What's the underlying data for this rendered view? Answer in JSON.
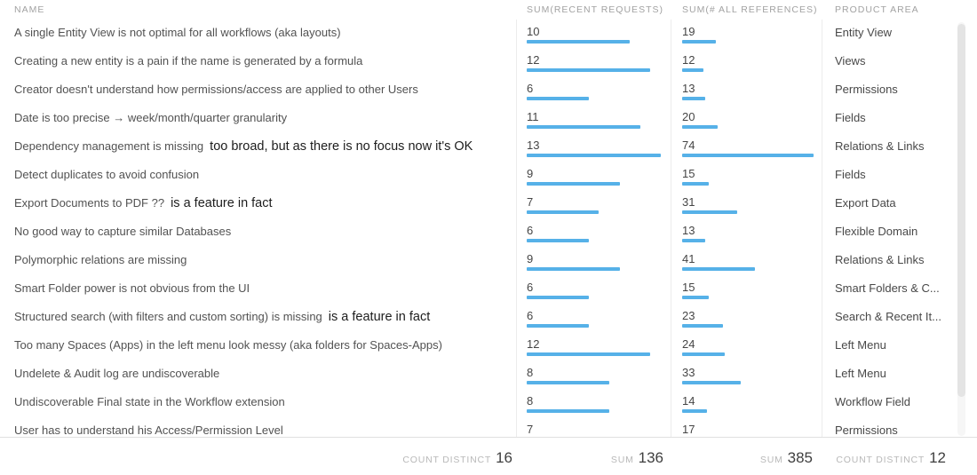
{
  "chart_data": {
    "type": "table",
    "bar_color": "#56b1e8",
    "bar_max": {
      "recent": 13,
      "refs": 74
    },
    "columns": [
      {
        "id": "name",
        "label": "NAME"
      },
      {
        "id": "recent",
        "label": "SUM(RECENT REQUESTS)"
      },
      {
        "id": "refs",
        "label": "SUM(# ALL REFERENCES)"
      },
      {
        "id": "area",
        "label": "PRODUCT AREA"
      }
    ],
    "rows": [
      {
        "name": "A single Entity View is not optimal for all workflows (aka layouts)",
        "annotation": "",
        "recent": 10,
        "refs": 19,
        "area": "Entity View"
      },
      {
        "name": "Creating a new entity is a pain if the name is generated by a formula",
        "annotation": "",
        "recent": 12,
        "refs": 12,
        "area": "Views"
      },
      {
        "name": "Creator doesn't understand how permissions/access are applied to other Users",
        "annotation": "",
        "recent": 6,
        "refs": 13,
        "area": "Permissions"
      },
      {
        "name": "Date is too precise → week/month/quarter granularity",
        "annotation": "",
        "recent": 11,
        "refs": 20,
        "area": "Fields"
      },
      {
        "name": "Dependency management is missing",
        "annotation": "too broad, but as there is no focus now it's OK",
        "recent": 13,
        "refs": 74,
        "area": "Relations & Links"
      },
      {
        "name": "Detect duplicates to avoid confusion",
        "annotation": "",
        "recent": 9,
        "refs": 15,
        "area": "Fields"
      },
      {
        "name": "Export Documents to PDF ??",
        "annotation": "is a feature in fact",
        "recent": 7,
        "refs": 31,
        "area": "Export Data"
      },
      {
        "name": "No good way to capture similar Databases",
        "annotation": "",
        "recent": 6,
        "refs": 13,
        "area": "Flexible Domain"
      },
      {
        "name": "Polymorphic relations are missing",
        "annotation": "",
        "recent": 9,
        "refs": 41,
        "area": "Relations & Links"
      },
      {
        "name": "Smart Folder power is not obvious from the UI",
        "annotation": "",
        "recent": 6,
        "refs": 15,
        "area": "Smart Folders & C..."
      },
      {
        "name": "Structured search (with filters and custom sorting) is missing",
        "annotation": "is a feature in fact",
        "recent": 6,
        "refs": 23,
        "area": "Search & Recent It..."
      },
      {
        "name": "Too many Spaces (Apps) in the left menu look messy (aka folders for Spaces-Apps)",
        "annotation": "",
        "recent": 12,
        "refs": 24,
        "area": "Left Menu"
      },
      {
        "name": "Undelete & Audit log are undiscoverable",
        "annotation": "",
        "recent": 8,
        "refs": 33,
        "area": "Left Menu"
      },
      {
        "name": "Undiscoverable Final state in the Workflow extension",
        "annotation": "",
        "recent": 8,
        "refs": 14,
        "area": "Workflow Field"
      },
      {
        "name": "User has to understand his Access/Permission Level",
        "annotation": "",
        "recent": 7,
        "refs": 17,
        "area": "Permissions"
      }
    ],
    "totals": {
      "name": {
        "label": "COUNT DISTINCT",
        "value": "16"
      },
      "recent": {
        "label": "SUM",
        "value": "136"
      },
      "refs": {
        "label": "SUM",
        "value": "385"
      },
      "area": {
        "label": "COUNT DISTINCT",
        "value": "12"
      }
    }
  }
}
